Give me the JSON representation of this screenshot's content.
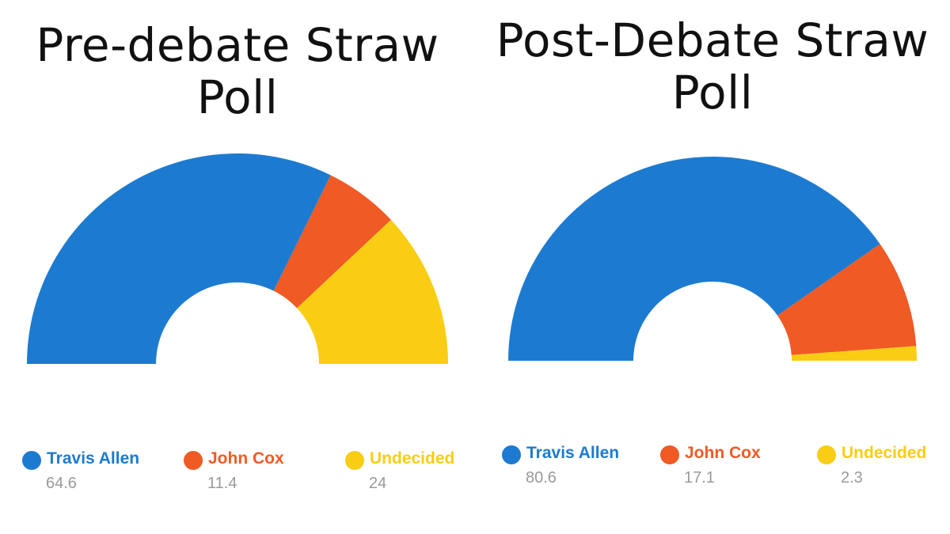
{
  "chart_data": [
    {
      "type": "pie",
      "subtype": "semi-donut",
      "title": "Pre-debate Straw Poll",
      "categories": [
        "Travis Allen",
        "John Cox",
        "Undecided"
      ],
      "values": [
        64.6,
        11.4,
        24
      ],
      "colors": [
        "#1c7bd0",
        "#f05a24",
        "#f9cd14"
      ],
      "legend": "bottom"
    },
    {
      "type": "pie",
      "subtype": "semi-donut",
      "title": "Post-Debate Straw Poll",
      "categories": [
        "Travis Allen",
        "John Cox",
        "Undecided"
      ],
      "values": [
        80.6,
        17.1,
        2.3
      ],
      "colors": [
        "#1c7bd0",
        "#f05a24",
        "#f9cd14"
      ],
      "legend": "bottom"
    }
  ]
}
